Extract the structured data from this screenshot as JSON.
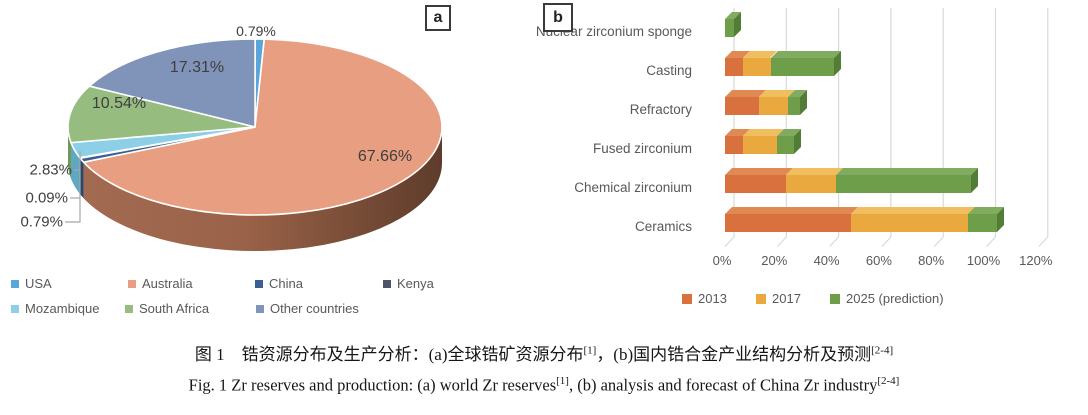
{
  "figure": {
    "panel_a_tag": "a",
    "panel_b_tag": "b",
    "caption_zh": {
      "prefix": "图 1　锆资源分布及生产分析：(a)全球锆矿资源分布",
      "ref1": "[1]",
      "mid": "，(b)国内锆合金产业结构分析及预测",
      "ref2": "[2-4]"
    },
    "caption_en": {
      "prefix": "Fig. 1  Zr reserves and production: (a) world Zr reserves",
      "ref1": "[1]",
      "mid": ", (b) analysis and forecast of China Zr industry",
      "ref2": "[2-4]"
    }
  },
  "chart_data": [
    {
      "type": "pie",
      "style": "3d",
      "title": "",
      "labels": [
        "USA",
        "Australia",
        "China",
        "Kenya",
        "Mozambique",
        "South Africa",
        "Other countries"
      ],
      "values": [
        0.79,
        67.66,
        0.79,
        0.09,
        2.83,
        10.54,
        17.31
      ],
      "data_labels": [
        "0.79%",
        "67.66%",
        "0.79%",
        "0.09%",
        "2.83%",
        "10.54%",
        "17.31%"
      ],
      "colors": [
        "#5BA6D8",
        "#E89E80",
        "#3C5F92",
        "#4E546A",
        "#8CCFE6",
        "#97BC80",
        "#8093B8"
      ],
      "side_colors": [
        "#3f85b5",
        "gradient",
        "#2E4766",
        "#3A4052",
        "#5FA8C2",
        "#729752",
        "#5f7194"
      ],
      "legend_position": "bottom"
    },
    {
      "type": "bar",
      "orientation": "horizontal-stacked-3d",
      "categories": [
        "Nuclear zirconium sponge",
        "Casting",
        "Refractory",
        "Fused zirconium",
        "Chemical zirconium",
        "Ceramics"
      ],
      "series": [
        {
          "name": "2013",
          "color": "#D9713E",
          "top_color": "#E08953",
          "end_color": "#AE5429",
          "values": [
            0,
            7,
            13,
            7,
            23.5,
            48
          ]
        },
        {
          "name": "2017",
          "color": "#EAA93F",
          "top_color": "#F0BE5E",
          "end_color": "#C4882F",
          "values": [
            0,
            10.5,
            11,
            13,
            19,
            45
          ]
        },
        {
          "name": "2025  (prediction)",
          "color": "#6F9E4B",
          "top_color": "#81AC5F",
          "end_color": "#527D36",
          "values": [
            3.5,
            24,
            4.5,
            6.5,
            51.5,
            11
          ]
        }
      ],
      "xticks": [
        "0%",
        "20%",
        "40%",
        "60%",
        "80%",
        "100%",
        "120%"
      ],
      "xlabel": "",
      "ylabel": "",
      "xlim": [
        0,
        120
      ],
      "grid": "vertical",
      "legend_position": "bottom",
      "gridline_color": "#D9D9D9"
    }
  ]
}
